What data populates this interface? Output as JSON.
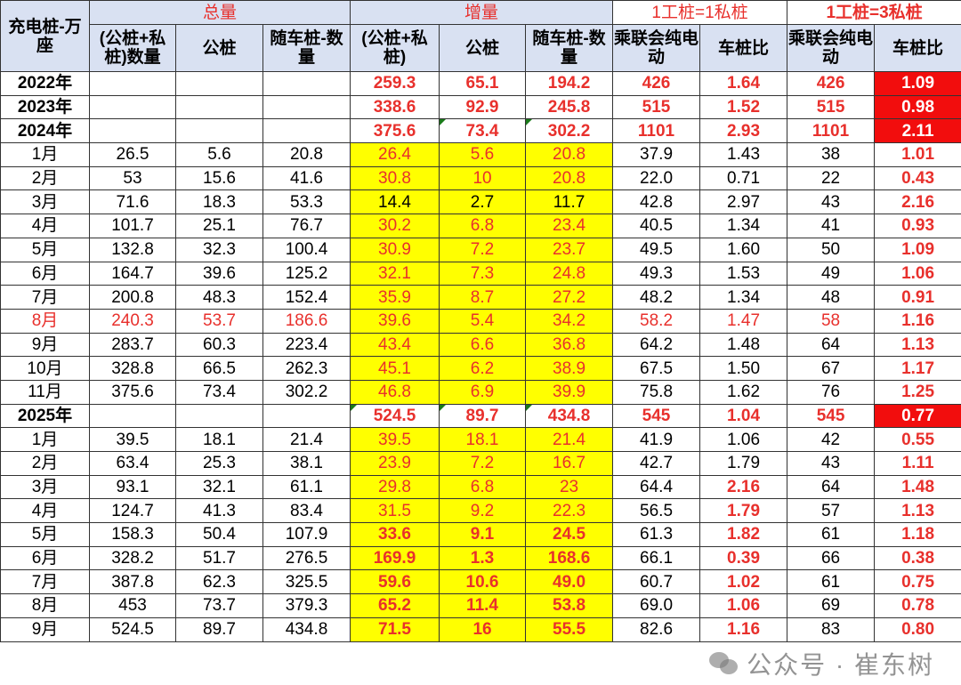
{
  "header": {
    "corner": "充电桩-万座",
    "groups": [
      "总量",
      "增量",
      "1工桩=1私桩",
      "1工桩=3私桩"
    ],
    "columns": [
      "(公桩+私桩)数量",
      "公桩",
      "随车桩-数量",
      "(公桩+私桩)",
      "公桩",
      "随车桩-数量",
      "乘联会纯电动",
      "车桩比",
      "乘联会纯电动",
      "车桩比"
    ]
  },
  "colors": {
    "accent_red": "#e8302c",
    "highlight_yellow": "#ffff00",
    "alert_red_bg": "#f20d0d",
    "header_bg": "#d9e1f2"
  },
  "rows": [
    {
      "type": "year",
      "cells": [
        "2022年",
        "",
        "",
        "",
        "259.3",
        "65.1",
        "194.2",
        "426",
        "1.64",
        "426",
        "1.09"
      ]
    },
    {
      "type": "year",
      "cells": [
        "2023年",
        "",
        "",
        "",
        "338.6",
        "92.9",
        "245.8",
        "515",
        "1.52",
        "515",
        "0.98"
      ]
    },
    {
      "type": "year",
      "cells": [
        "2024年",
        "",
        "",
        "",
        "375.6",
        "73.4",
        "302.2",
        "1101",
        "2.93",
        "1101",
        "2.11"
      ],
      "comment_marks": [
        5,
        6
      ]
    },
    {
      "type": "month",
      "cells": [
        "1月",
        "26.5",
        "5.6",
        "20.8",
        "26.4",
        "5.6",
        "20.8",
        "37.9",
        "1.43",
        "38",
        "1.01"
      ]
    },
    {
      "type": "month",
      "cells": [
        "2月",
        "53",
        "15.6",
        "41.6",
        "30.8",
        "10",
        "20.8",
        "22.0",
        "0.71",
        "22",
        "0.43"
      ]
    },
    {
      "type": "month",
      "cells": [
        "3月",
        "71.6",
        "18.3",
        "53.3",
        "14.4",
        "2.7",
        "11.7",
        "42.8",
        "2.97",
        "43",
        "2.16"
      ],
      "increment_black": true
    },
    {
      "type": "month",
      "cells": [
        "4月",
        "101.7",
        "25.1",
        "76.7",
        "30.2",
        "6.8",
        "23.4",
        "40.5",
        "1.34",
        "41",
        "0.93"
      ]
    },
    {
      "type": "month",
      "cells": [
        "5月",
        "132.8",
        "32.3",
        "100.4",
        "30.9",
        "7.2",
        "23.7",
        "49.5",
        "1.60",
        "50",
        "1.09"
      ]
    },
    {
      "type": "month",
      "cells": [
        "6月",
        "164.7",
        "39.6",
        "125.2",
        "32.1",
        "7.3",
        "24.8",
        "49.3",
        "1.53",
        "49",
        "1.06"
      ]
    },
    {
      "type": "month",
      "cells": [
        "7月",
        "200.8",
        "48.3",
        "152.4",
        "35.9",
        "8.7",
        "27.2",
        "48.2",
        "1.34",
        "48",
        "0.91"
      ]
    },
    {
      "type": "month",
      "cells": [
        "8月",
        "240.3",
        "53.7",
        "186.6",
        "39.6",
        "5.4",
        "34.2",
        "58.2",
        "1.47",
        "58",
        "1.16"
      ],
      "row_red": true
    },
    {
      "type": "month",
      "cells": [
        "9月",
        "283.7",
        "60.3",
        "223.4",
        "43.4",
        "6.6",
        "36.8",
        "64.2",
        "1.48",
        "64",
        "1.13"
      ]
    },
    {
      "type": "month",
      "cells": [
        "10月",
        "328.8",
        "66.5",
        "262.3",
        "45.1",
        "6.2",
        "38.9",
        "67.5",
        "1.50",
        "67",
        "1.17"
      ]
    },
    {
      "type": "month",
      "cells": [
        "11月",
        "375.6",
        "73.4",
        "302.2",
        "46.8",
        "6.9",
        "39.9",
        "75.8",
        "1.62",
        "76",
        "1.25"
      ]
    },
    {
      "type": "year",
      "cells": [
        "2025年",
        "",
        "",
        "",
        "524.5",
        "89.7",
        "434.8",
        "545",
        "1.04",
        "545",
        "0.77"
      ],
      "comment_marks": [
        4,
        5,
        6
      ]
    },
    {
      "type": "month",
      "cells": [
        "1月",
        "39.5",
        "18.1",
        "21.4",
        "39.5",
        "18.1",
        "21.4",
        "41.9",
        "1.06",
        "42",
        "0.55"
      ]
    },
    {
      "type": "month",
      "cells": [
        "2月",
        "63.4",
        "25.3",
        "38.1",
        "23.9",
        "7.2",
        "16.7",
        "42.7",
        "1.79",
        "43",
        "1.11"
      ]
    },
    {
      "type": "month",
      "cells": [
        "3月",
        "93.1",
        "32.1",
        "61.1",
        "29.8",
        "6.8",
        "23",
        "64.4",
        "2.16",
        "64",
        "1.48"
      ],
      "ratio_red": true
    },
    {
      "type": "month",
      "cells": [
        "4月",
        "124.7",
        "41.3",
        "83.4",
        "31.5",
        "9.2",
        "22.3",
        "56.5",
        "1.79",
        "57",
        "1.13"
      ],
      "ratio_red": true
    },
    {
      "type": "month",
      "cells": [
        "5月",
        "158.3",
        "50.4",
        "107.9",
        "33.6",
        "9.1",
        "24.5",
        "61.3",
        "1.82",
        "61",
        "1.18"
      ],
      "ratio_red": true,
      "increment_bold": true
    },
    {
      "type": "month",
      "cells": [
        "6月",
        "328.2",
        "51.7",
        "276.5",
        "169.9",
        "1.3",
        "168.6",
        "66.1",
        "0.39",
        "66",
        "0.38"
      ],
      "ratio_red": true,
      "increment_bold": true
    },
    {
      "type": "month",
      "cells": [
        "7月",
        "387.8",
        "62.3",
        "325.5",
        "59.6",
        "10.6",
        "49.0",
        "60.7",
        "1.02",
        "61",
        "0.75"
      ],
      "ratio_red": true,
      "increment_bold": true
    },
    {
      "type": "month",
      "cells": [
        "8月",
        "453",
        "73.7",
        "379.3",
        "65.2",
        "11.4",
        "53.8",
        "69.0",
        "1.06",
        "69",
        "0.78"
      ],
      "ratio_red": true,
      "increment_bold": true
    },
    {
      "type": "month",
      "cells": [
        "9月",
        "524.5",
        "89.7",
        "434.8",
        "71.5",
        "16",
        "55.5",
        "82.6",
        "1.16",
        "83",
        "0.80"
      ],
      "ratio_red": true,
      "increment_bold": true
    }
  ],
  "watermark": "公众号 · 崔东树"
}
